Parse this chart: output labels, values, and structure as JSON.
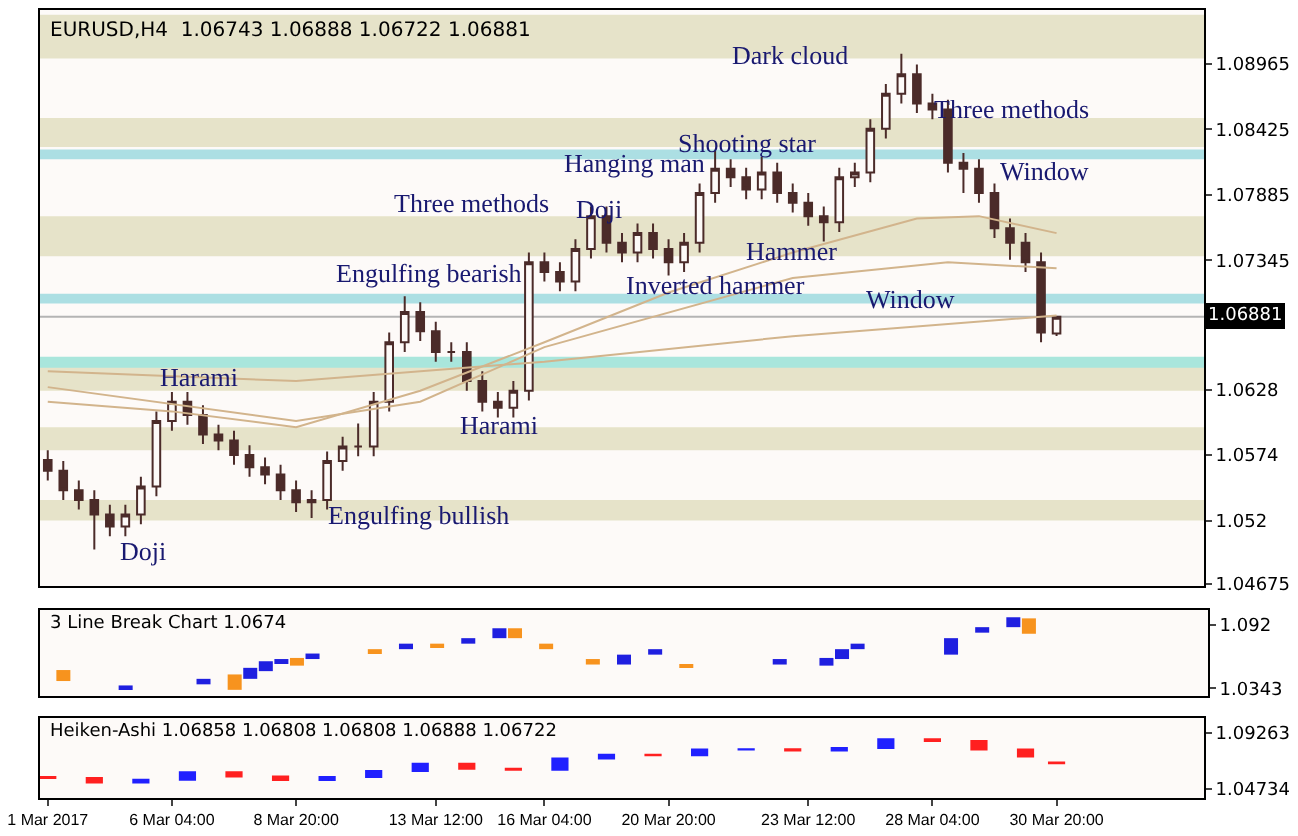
{
  "chart_data": [
    {
      "type": "candlestick",
      "title": "EURUSD,H4  1.06743 1.06888 1.06722 1.06881",
      "categories": [
        null,
        null,
        null,
        null,
        null,
        null,
        null,
        null,
        null,
        null,
        null,
        null,
        null,
        null,
        null,
        null,
        null,
        null,
        null,
        null,
        null,
        null,
        null,
        null,
        null,
        null,
        null,
        null,
        null,
        null,
        null,
        null,
        null,
        null,
        null,
        null,
        null,
        null,
        null,
        null,
        null,
        null,
        null,
        null,
        null,
        null,
        null,
        null,
        null,
        null,
        null,
        null,
        null,
        null,
        null,
        null,
        null,
        null,
        null,
        null,
        null,
        null,
        null,
        null,
        null,
        null,
        null,
        null,
        null,
        null,
        null,
        null,
        null,
        null,
        null
      ],
      "ylim": [
        1.0466,
        1.0941
      ],
      "yticks": [
        1.08965,
        1.08425,
        1.07885,
        1.07345,
        1.0628,
        1.0574,
        1.052,
        1.04675
      ],
      "grid": false,
      "bands": [
        {
          "axis": "y",
          "from": 1.0901,
          "to": 1.0937,
          "color": "#e6e3c9"
        },
        {
          "axis": "y",
          "from": 1.0828,
          "to": 1.0852,
          "color": "#e6e3c9"
        },
        {
          "axis": "y",
          "from": 1.0738,
          "to": 1.0771,
          "color": "#e6e3c9"
        },
        {
          "axis": "y",
          "from": 1.0627,
          "to": 1.0648,
          "color": "#e6e3c9"
        },
        {
          "axis": "y",
          "from": 1.0578,
          "to": 1.0597,
          "color": "#e6e3c9"
        },
        {
          "axis": "y",
          "from": 1.052,
          "to": 1.0537,
          "color": "#e6e3c9"
        },
        {
          "axis": "y",
          "from": 1.0818,
          "to": 1.0826,
          "color": "#acdfe3"
        },
        {
          "axis": "y",
          "from": 1.0699,
          "to": 1.0707,
          "color": "#acdfe3"
        },
        {
          "axis": "y",
          "from": 1.0646,
          "to": 1.0655,
          "color": "#a9e6dc"
        }
      ],
      "ref_lines": [
        {
          "axis": "y",
          "value": 1.06881,
          "label": "1.06881",
          "color": "#b4b4b4"
        }
      ],
      "annotations": [
        "Doji",
        "Harami",
        "Engulfing bullish",
        "Engulfing bearish",
        "Harami",
        "Three methods",
        "Doji",
        "Inverted hammer",
        "Hanging man",
        "Shooting star",
        "Hammer",
        "Dark cloud",
        "Three methods",
        "Window",
        "Window"
      ],
      "series": [
        {
          "type": "line",
          "color": "#d2b48c",
          "values": [
            1.0643,
            null,
            null,
            null,
            null,
            null,
            null,
            null,
            null,
            null,
            null,
            null,
            null,
            null,
            null,
            null,
            1.0635,
            null,
            null,
            null,
            null,
            null,
            null,
            null,
            null,
            null,
            null,
            null,
            null,
            null,
            null,
            null,
            1.0651,
            null,
            null,
            null,
            null,
            null,
            null,
            null,
            null,
            null,
            null,
            null,
            null,
            null,
            null,
            null,
            1.0672,
            null,
            null,
            null,
            null,
            null,
            null,
            null,
            null,
            null,
            null,
            null,
            null,
            null,
            null,
            null,
            null,
            1.0689,
            null,
            null,
            null,
            null,
            null,
            null,
            null,
            null,
            null
          ]
        },
        {
          "type": "line",
          "color": "#d2b48c",
          "values": [
            1.063,
            null,
            null,
            null,
            null,
            null,
            null,
            null,
            null,
            null,
            null,
            null,
            null,
            null,
            null,
            null,
            1.0602,
            null,
            null,
            null,
            null,
            null,
            null,
            null,
            1.0618,
            null,
            null,
            null,
            null,
            null,
            null,
            null,
            1.0663,
            null,
            null,
            null,
            null,
            null,
            null,
            null,
            null,
            null,
            null,
            null,
            null,
            null,
            null,
            null,
            1.072,
            null,
            null,
            null,
            null,
            null,
            null,
            null,
            null,
            null,
            1.0733,
            null,
            null,
            null,
            null,
            null,
            null,
            1.0728,
            null,
            null,
            null,
            null,
            null,
            null,
            null,
            null,
            null
          ]
        },
        {
          "type": "line",
          "color": "#d2b48c",
          "values": [
            1.0618,
            null,
            null,
            null,
            null,
            null,
            null,
            null,
            1.061,
            null,
            null,
            null,
            null,
            null,
            null,
            null,
            1.0597,
            null,
            null,
            null,
            null,
            null,
            null,
            null,
            1.0627,
            null,
            null,
            null,
            null,
            null,
            null,
            null,
            1.0667,
            null,
            null,
            null,
            null,
            null,
            null,
            null,
            1.0708,
            null,
            null,
            null,
            null,
            null,
            null,
            null,
            1.0741,
            null,
            null,
            null,
            null,
            null,
            null,
            null,
            1.0769,
            null,
            null,
            null,
            1.0771,
            null,
            null,
            null,
            null,
            1.0757,
            null,
            null,
            null,
            null,
            null,
            null,
            null,
            null,
            null
          ]
        },
        {
          "color": "#4b2b29",
          "ohlc": [
            [
              1.057,
              1.0578,
              1.0553,
              1.0561
            ],
            [
              1.0561,
              1.0569,
              1.0537,
              1.0545
            ],
            [
              1.0545,
              1.0553,
              1.0529,
              1.0537
            ],
            [
              1.0537,
              1.0545,
              1.0496,
              1.0525
            ],
            [
              1.0525,
              1.0533,
              1.0507,
              1.0515
            ],
            [
              1.0515,
              1.0533,
              1.0507,
              1.0525
            ],
            [
              1.0525,
              1.0556,
              1.0517,
              1.0548
            ],
            [
              1.0548,
              1.061,
              1.054,
              1.0602
            ],
            [
              1.0602,
              1.0626,
              1.0594,
              1.0618
            ],
            [
              1.0618,
              1.0626,
              1.0599,
              1.0607
            ],
            [
              1.0607,
              1.0615,
              1.0583,
              1.0591
            ],
            [
              1.0591,
              1.0599,
              1.0578,
              1.0586
            ],
            [
              1.0586,
              1.0594,
              1.0566,
              1.0574
            ],
            [
              1.0574,
              1.0582,
              1.0556,
              1.0564
            ],
            [
              1.0564,
              1.0572,
              1.055,
              1.0558
            ],
            [
              1.0558,
              1.0566,
              1.0537,
              1.0545
            ],
            [
              1.0545,
              1.0553,
              1.0527,
              1.0535
            ],
            [
              1.0535,
              1.0545,
              1.0522,
              1.0537
            ],
            [
              1.0537,
              1.0577,
              1.0529,
              1.0569
            ],
            [
              1.0569,
              1.0589,
              1.0561,
              1.0581
            ],
            [
              1.0581,
              1.06,
              1.0573,
              1.0581
            ],
            [
              1.0581,
              1.0626,
              1.0573,
              1.0618
            ],
            [
              1.0618,
              1.0675,
              1.061,
              1.0667
            ],
            [
              1.0667,
              1.0705,
              1.0659,
              1.0692
            ],
            [
              1.0692,
              1.07,
              1.0668,
              1.0676
            ],
            [
              1.0676,
              1.0684,
              1.0651,
              1.0659
            ],
            [
              1.0659,
              1.0667,
              1.0651,
              1.0659
            ],
            [
              1.0659,
              1.0667,
              1.0627,
              1.0635
            ],
            [
              1.0635,
              1.0643,
              1.061,
              1.0618
            ],
            [
              1.0618,
              1.0626,
              1.0605,
              1.0613
            ],
            [
              1.0613,
              1.0635,
              1.0605,
              1.0627
            ],
            [
              1.0627,
              1.0741,
              1.0619,
              1.0733
            ],
            [
              1.0733,
              1.0741,
              1.0717,
              1.0725
            ],
            [
              1.0725,
              1.0733,
              1.0709,
              1.0717
            ],
            [
              1.0717,
              1.0752,
              1.0709,
              1.0744
            ],
            [
              1.0744,
              1.0779,
              1.0736,
              1.0771
            ],
            [
              1.0771,
              1.0779,
              1.0741,
              1.0749
            ],
            [
              1.0749,
              1.0757,
              1.0733,
              1.0741
            ],
            [
              1.0741,
              1.0765,
              1.0733,
              1.0757
            ],
            [
              1.0757,
              1.0765,
              1.0736,
              1.0744
            ],
            [
              1.0744,
              1.0752,
              1.0722,
              1.0733
            ],
            [
              1.0733,
              1.0757,
              1.0725,
              1.0749
            ],
            [
              1.0749,
              1.0798,
              1.0741,
              1.079
            ],
            [
              1.079,
              1.0825,
              1.0782,
              1.081
            ],
            [
              1.081,
              1.0818,
              1.0795,
              1.0803
            ],
            [
              1.0803,
              1.0811,
              1.0785,
              1.0793
            ],
            [
              1.0793,
              1.082,
              1.0785,
              1.0807
            ],
            [
              1.0807,
              1.0815,
              1.0782,
              1.079
            ],
            [
              1.079,
              1.0798,
              1.0774,
              1.0782
            ],
            [
              1.0782,
              1.079,
              1.0763,
              1.0771
            ],
            [
              1.0771,
              1.0779,
              1.075,
              1.0766
            ],
            [
              1.0766,
              1.0811,
              1.0758,
              1.0803
            ],
            [
              1.0803,
              1.0815,
              1.0795,
              1.0807
            ],
            [
              1.0807,
              1.0851,
              1.0799,
              1.0843
            ],
            [
              1.0843,
              1.088,
              1.0835,
              1.0872
            ],
            [
              1.0872,
              1.0905,
              1.0864,
              1.0888
            ],
            [
              1.0888,
              1.0896,
              1.0856,
              1.0864
            ],
            [
              1.0864,
              1.0872,
              1.0851,
              1.0859
            ],
            [
              1.0859,
              1.0867,
              1.0807,
              1.0815
            ],
            [
              1.0815,
              1.0823,
              1.079,
              1.081
            ],
            [
              1.081,
              1.0818,
              1.0782,
              1.079
            ],
            [
              1.079,
              1.0798,
              1.0753,
              1.0761
            ],
            [
              1.0761,
              1.0769,
              1.0735,
              1.0749
            ],
            [
              1.0749,
              1.0757,
              1.0725,
              1.0733
            ],
            [
              1.0733,
              1.0741,
              1.0667,
              1.0675
            ],
            [
              1.06743,
              1.06888,
              1.06722,
              1.06881
            ],
            null,
            null,
            null,
            null,
            null,
            null,
            null,
            null,
            null
          ]
        }
      ]
    },
    {
      "type": "bar",
      "title": "3 Line Break Chart 1.0674",
      "categories": [
        null,
        null,
        null,
        null,
        null,
        null,
        null,
        null,
        null,
        null,
        null,
        null,
        null,
        null,
        null,
        null,
        null,
        null,
        null,
        null,
        null,
        null,
        null,
        null,
        null,
        null,
        null,
        null,
        null,
        null,
        null,
        null,
        null,
        null,
        null,
        null,
        null,
        null,
        null,
        null,
        null,
        null,
        null,
        null,
        null,
        null,
        null,
        null,
        null,
        null,
        null,
        null,
        null,
        null,
        null,
        null,
        null,
        null,
        null,
        null,
        null,
        null,
        null,
        null,
        null,
        null,
        null,
        null,
        null,
        null,
        null,
        null,
        null,
        null,
        null
      ],
      "ylim": [
        1.0274,
        1.1056
      ],
      "yticks": [
        1.092,
        1.0343
      ],
      "grid": false,
      "series": [
        {
          "base": [
            null,
            1.041,
            null,
            null,
            null,
            1.034,
            null,
            null,
            null,
            null,
            1.038,
            null,
            1.033,
            1.043,
            1.05,
            1.058,
            1.055,
            1.061,
            null,
            null,
            null,
            1.067,
            null,
            1.07,
            null,
            1.072,
            null,
            1.075,
            null,
            1.08,
            1.08,
            null,
            1.07,
            null,
            null,
            1.056,
            null,
            1.056,
            null,
            1.065,
            null,
            1.053,
            null,
            null,
            null,
            null,
            null,
            1.056,
            null,
            null,
            1.055,
            1.061,
            1.07,
            null,
            null,
            null,
            null,
            null,
            1.065,
            null,
            1.085,
            null,
            1.09,
            1.084,
            null,
            null,
            null,
            null,
            null,
            null,
            null,
            null,
            null,
            null,
            null
          ],
          "values": [
            null,
            0.01,
            null,
            null,
            null,
            0.003,
            null,
            null,
            null,
            null,
            0.005,
            null,
            0.014,
            0.01,
            0.009,
            0.003,
            0.007,
            0.005,
            null,
            null,
            null,
            0.003,
            null,
            0.005,
            null,
            0.003,
            null,
            0.005,
            null,
            0.009,
            0.009,
            null,
            0.005,
            null,
            null,
            0.005,
            null,
            0.009,
            null,
            0.005,
            null,
            0.003,
            null,
            null,
            null,
            null,
            null,
            0.005,
            null,
            null,
            0.007,
            0.009,
            0.005,
            null,
            null,
            null,
            null,
            null,
            0.015,
            null,
            0.005,
            null,
            0.009,
            0.014,
            null,
            null,
            null,
            null,
            null,
            null,
            null,
            null,
            null,
            null,
            null
          ],
          "colors": [
            null,
            "#f7931e",
            null,
            null,
            null,
            "#1f1fe0",
            null,
            null,
            null,
            null,
            "#1f1fe0",
            null,
            "#f7931e",
            "#1f1fe0",
            "#1f1fe0",
            "#1f1fe0",
            "#f7931e",
            "#1f1fe0",
            null,
            null,
            null,
            "#f7931e",
            null,
            "#1f1fe0",
            null,
            "#f7931e",
            null,
            "#1f1fe0",
            null,
            "#1f1fe0",
            "#f7931e",
            null,
            "#f7931e",
            null,
            null,
            "#f7931e",
            null,
            "#1f1fe0",
            null,
            "#1f1fe0",
            null,
            "#f7931e",
            null,
            null,
            null,
            null,
            null,
            "#1f1fe0",
            null,
            null,
            "#1f1fe0",
            "#1f1fe0",
            "#1f1fe0",
            null,
            null,
            null,
            null,
            null,
            "#1f1fe0",
            null,
            "#1f1fe0",
            null,
            "#1f1fe0",
            "#f7931e",
            null,
            null,
            null,
            null,
            null,
            null,
            null,
            null,
            null,
            null,
            null
          ]
        }
      ]
    },
    {
      "type": "candlestick",
      "title": "Heiken-Ashi 1.06858 1.06808 1.06808 1.06888 1.06722",
      "categories": [
        "1 Mar 2017",
        null,
        null,
        null,
        null,
        null,
        null,
        null,
        "6 Mar 04:00",
        null,
        null,
        null,
        null,
        null,
        null,
        null,
        "8 Mar 20:00",
        null,
        null,
        null,
        null,
        null,
        null,
        null,
        null,
        "13 Mar 12:00",
        null,
        null,
        null,
        null,
        null,
        null,
        "16 Mar 04:00",
        null,
        null,
        null,
        null,
        null,
        null,
        null,
        "20 Mar 20:00",
        null,
        null,
        null,
        null,
        null,
        null,
        null,
        null,
        "23 Mar 12:00",
        null,
        null,
        null,
        null,
        null,
        null,
        null,
        "28 Mar 04:00",
        null,
        null,
        null,
        null,
        null,
        null,
        null,
        "30 Mar 20:00",
        null,
        null,
        null,
        null,
        null,
        null,
        null,
        null,
        null
      ],
      "ylim": [
        1.0401,
        1.1043
      ],
      "yticks": [
        1.09263,
        1.04734
      ],
      "grid": false,
      "series": [
        {
          "ohlc": [
            [
              1.057,
              1.0575,
              1.0556,
              1.0561
            ],
            null,
            null,
            [
              1.0561,
              1.0566,
              1.052,
              1.0525
            ],
            null,
            null,
            [
              1.0525,
              1.0553,
              1.052,
              1.0548
            ],
            null,
            null,
            [
              1.0548,
              1.0612,
              1.0543,
              1.0607
            ],
            null,
            null,
            [
              1.0607,
              1.0612,
              1.0569,
              1.0574
            ],
            null,
            null,
            [
              1.0574,
              1.0579,
              1.054,
              1.0545
            ],
            null,
            null,
            [
              1.0545,
              1.0574,
              1.054,
              1.0569
            ],
            null,
            null,
            [
              1.0569,
              1.0623,
              1.0564,
              1.0618
            ],
            null,
            null,
            [
              1.0618,
              1.0681,
              1.0613,
              1.0676
            ],
            null,
            null,
            [
              1.0676,
              1.0681,
              1.063,
              1.0635
            ],
            null,
            null,
            [
              1.0635,
              1.064,
              1.0622,
              1.0627
            ],
            null,
            null,
            [
              1.0627,
              1.0722,
              1.0622,
              1.0717
            ],
            null,
            null,
            [
              1.0717,
              1.0754,
              1.0712,
              1.0749
            ],
            null,
            null,
            [
              1.0749,
              1.0754,
              1.0739,
              1.0744
            ],
            null,
            null,
            [
              1.0744,
              1.0795,
              1.0739,
              1.079
            ],
            null,
            null,
            [
              1.079,
              1.0798,
              1.0785,
              1.0793
            ],
            null,
            null,
            [
              1.0793,
              1.0798,
              1.0777,
              1.0782
            ],
            null,
            null,
            [
              1.0782,
              1.0808,
              1.0777,
              1.0803
            ],
            null,
            null,
            [
              1.0803,
              1.0877,
              1.0798,
              1.0872
            ],
            null,
            null,
            [
              1.0872,
              1.0877,
              1.0854,
              1.0859
            ],
            null,
            null,
            [
              1.0859,
              1.0864,
              1.0785,
              1.079
            ],
            null,
            null,
            [
              1.079,
              1.0795,
              1.0728,
              1.0733
            ],
            null,
            [
              1.06858,
              1.06888,
              1.06722,
              1.06808
            ],
            null,
            null,
            null,
            null,
            null,
            null,
            null,
            null,
            null
          ],
          "colors": [
            "#ff2020",
            null,
            null,
            "#ff2020",
            null,
            null,
            "#2020ff",
            null,
            null,
            "#2020ff",
            null,
            null,
            "#ff2020",
            null,
            null,
            "#ff2020",
            null,
            null,
            "#2020ff",
            null,
            null,
            "#2020ff",
            null,
            null,
            "#2020ff",
            null,
            null,
            "#ff2020",
            null,
            null,
            "#ff2020",
            null,
            null,
            "#2020ff",
            null,
            null,
            "#2020ff",
            null,
            null,
            "#ff2020",
            null,
            null,
            "#2020ff",
            null,
            null,
            "#2020ff",
            null,
            null,
            "#ff2020",
            null,
            null,
            "#2020ff",
            null,
            null,
            "#2020ff",
            null,
            null,
            "#ff2020",
            null,
            null,
            "#ff2020",
            null,
            null,
            "#ff2020",
            null,
            "#ff2020",
            null,
            null,
            null,
            null,
            null,
            null,
            null,
            null,
            null
          ]
        }
      ]
    }
  ]
}
